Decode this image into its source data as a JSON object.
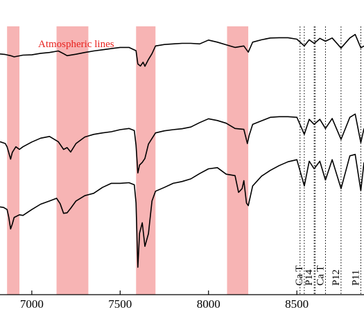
{
  "chart_data": {
    "type": "line",
    "title": "",
    "xlabel": "",
    "ylabel": "",
    "xlim": [
      6820,
      8880
    ],
    "ylim": [
      0,
      1
    ],
    "grid": false,
    "xticks": [
      7000,
      7500,
      8000,
      8500
    ],
    "xtick_labels": [
      "7000",
      "7500",
      "8000",
      "8500"
    ],
    "colors": {
      "line": "#000000",
      "band": "#f7b4b4",
      "band_label": "#e8231f",
      "marker": "#333333"
    },
    "band_label": "Atmospheric lines",
    "atmospheric_bands": [
      {
        "start": 6860,
        "end": 6930
      },
      {
        "start": 7140,
        "end": 7320
      },
      {
        "start": 7590,
        "end": 7700
      },
      {
        "start": 8105,
        "end": 8225
      }
    ],
    "spectral_lines": [
      {
        "label": "Ca T",
        "wavelength": 8542
      },
      {
        "label": "P14",
        "wavelength": 8598
      },
      {
        "label": "Ca T",
        "wavelength": 8662
      },
      {
        "label": "P12",
        "wavelength": 8750
      },
      {
        "label": "P11",
        "wavelength": 8862
      }
    ],
    "extra_markers": [
      8518,
      8603
    ],
    "series": [
      {
        "x": [
          6820,
          6850,
          6880,
          6900,
          6950,
          7000,
          7050,
          7100,
          7150,
          7180,
          7200,
          7250,
          7300,
          7350,
          7400,
          7450,
          7500,
          7550,
          7590,
          7600,
          7615,
          7630,
          7640,
          7660,
          7680,
          7700,
          7750,
          7800,
          7850,
          7900,
          7950,
          8000,
          8050,
          8100,
          8150,
          8200,
          8225,
          8250,
          8300,
          8350,
          8400,
          8450,
          8500,
          8542,
          8570,
          8598,
          8630,
          8662,
          8700,
          8750,
          8800,
          8830,
          8862,
          8880
        ],
        "y": [
          0.817,
          0.815,
          0.811,
          0.807,
          0.813,
          0.814,
          0.819,
          0.822,
          0.827,
          0.818,
          0.811,
          0.816,
          0.822,
          0.827,
          0.831,
          0.835,
          0.839,
          0.839,
          0.828,
          0.783,
          0.776,
          0.789,
          0.775,
          0.798,
          0.818,
          0.844,
          0.849,
          0.851,
          0.853,
          0.853,
          0.851,
          0.864,
          0.857,
          0.848,
          0.839,
          0.844,
          0.823,
          0.857,
          0.865,
          0.871,
          0.872,
          0.872,
          0.867,
          0.844,
          0.865,
          0.853,
          0.87,
          0.86,
          0.871,
          0.837,
          0.871,
          0.883,
          0.838,
          0.844
        ]
      },
      {
        "x": [
          6820,
          6850,
          6860,
          6880,
          6890,
          6910,
          6930,
          6950,
          7000,
          7050,
          7100,
          7150,
          7180,
          7200,
          7220,
          7250,
          7300,
          7350,
          7400,
          7450,
          7500,
          7550,
          7580,
          7590,
          7600,
          7610,
          7625,
          7640,
          7660,
          7700,
          7750,
          7800,
          7850,
          7900,
          7950,
          8000,
          8050,
          8100,
          8150,
          8200,
          8220,
          8230,
          8250,
          8300,
          8350,
          8400,
          8450,
          8500,
          8542,
          8570,
          8598,
          8630,
          8662,
          8700,
          8750,
          8800,
          8830,
          8862,
          8880
        ],
        "y": [
          0.519,
          0.513,
          0.502,
          0.46,
          0.483,
          0.502,
          0.493,
          0.502,
          0.518,
          0.531,
          0.537,
          0.519,
          0.493,
          0.499,
          0.484,
          0.513,
          0.535,
          0.544,
          0.549,
          0.553,
          0.56,
          0.564,
          0.557,
          0.507,
          0.413,
          0.44,
          0.449,
          0.462,
          0.511,
          0.549,
          0.556,
          0.56,
          0.563,
          0.569,
          0.584,
          0.597,
          0.591,
          0.582,
          0.564,
          0.561,
          0.513,
          0.54,
          0.578,
          0.59,
          0.602,
          0.604,
          0.604,
          0.602,
          0.544,
          0.595,
          0.578,
          0.595,
          0.564,
          0.598,
          0.527,
          0.602,
          0.613,
          0.516,
          0.564
        ]
      },
      {
        "x": [
          6820,
          6840,
          6860,
          6870,
          6880,
          6890,
          6900,
          6930,
          6950,
          7000,
          7050,
          7100,
          7140,
          7160,
          7180,
          7200,
          7220,
          7250,
          7300,
          7350,
          7400,
          7450,
          7500,
          7550,
          7580,
          7590,
          7600,
          7610,
          7625,
          7640,
          7660,
          7680,
          7700,
          7750,
          7800,
          7850,
          7900,
          7950,
          8000,
          8050,
          8100,
          8150,
          8170,
          8190,
          8200,
          8215,
          8225,
          8250,
          8300,
          8350,
          8400,
          8450,
          8500,
          8542,
          8570,
          8598,
          8630,
          8662,
          8700,
          8750,
          8800,
          8830,
          8862,
          8880
        ],
        "y": [
          0.298,
          0.296,
          0.289,
          0.262,
          0.223,
          0.24,
          0.262,
          0.271,
          0.269,
          0.289,
          0.307,
          0.318,
          0.327,
          0.309,
          0.276,
          0.278,
          0.293,
          0.318,
          0.336,
          0.344,
          0.364,
          0.378,
          0.378,
          0.38,
          0.373,
          0.311,
          0.093,
          0.209,
          0.244,
          0.164,
          0.207,
          0.318,
          0.351,
          0.364,
          0.378,
          0.384,
          0.393,
          0.411,
          0.427,
          0.431,
          0.409,
          0.404,
          0.347,
          0.36,
          0.387,
          0.311,
          0.302,
          0.369,
          0.402,
          0.422,
          0.438,
          0.451,
          0.458,
          0.369,
          0.453,
          0.427,
          0.453,
          0.389,
          0.458,
          0.36,
          0.471,
          0.476,
          0.353,
          0.449
        ]
      }
    ]
  }
}
